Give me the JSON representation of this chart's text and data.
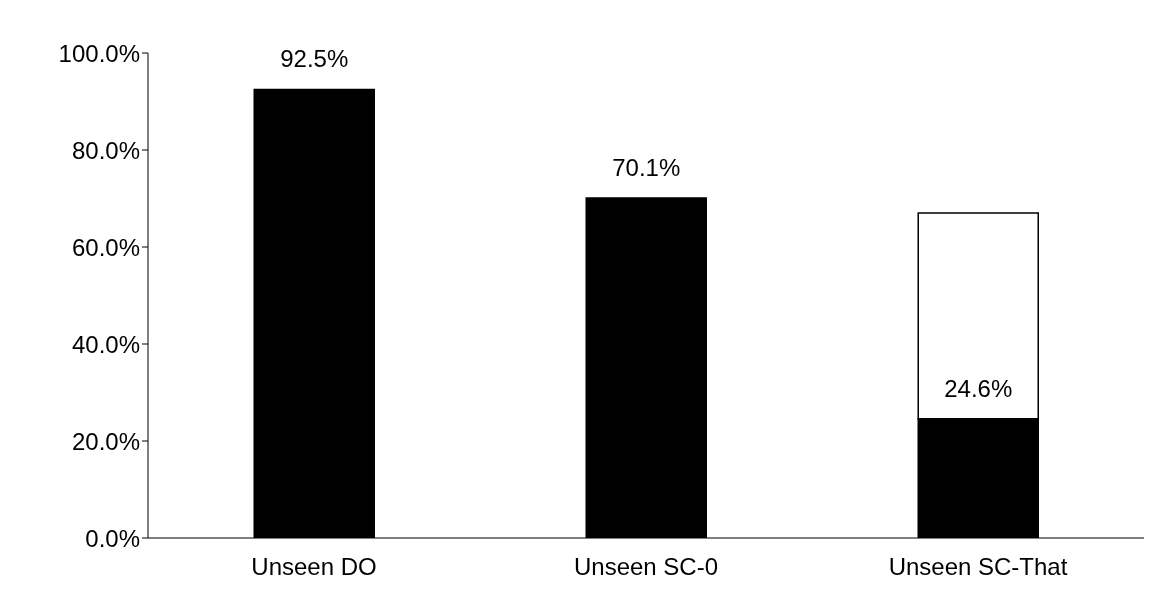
{
  "chart_data": {
    "type": "bar",
    "stacked": true,
    "categories": [
      "Unseen DO",
      "Unseen SC-0",
      "Unseen SC-That"
    ],
    "series": [
      {
        "color": "#000000",
        "values": [
          92.5,
          70.1,
          24.6
        ],
        "value_labels": [
          "92.5%",
          "70.1%",
          "24.6%"
        ]
      },
      {
        "color": "#ffffff",
        "values": [
          null,
          null,
          42.4
        ]
      }
    ],
    "ylim": [
      0,
      100
    ],
    "yticks": [
      {
        "value": 0,
        "label": "0.0%"
      },
      {
        "value": 20,
        "label": "20.0%"
      },
      {
        "value": 40,
        "label": "40.0%"
      },
      {
        "value": 60,
        "label": "60.0%"
      },
      {
        "value": 80,
        "label": "80.0%"
      },
      {
        "value": 100,
        "label": "100.0%"
      }
    ],
    "grid": false,
    "legend": false
  }
}
